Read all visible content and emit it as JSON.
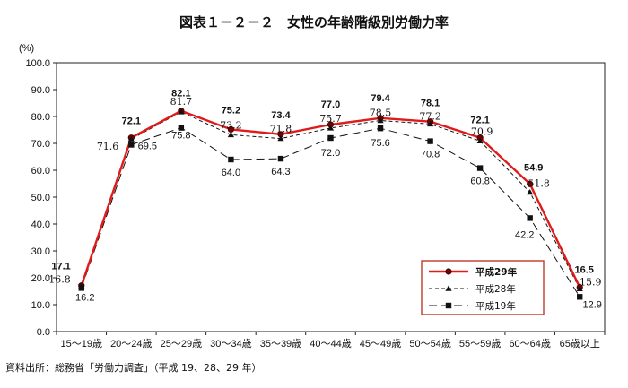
{
  "chart_data": {
    "type": "line",
    "title": "図表１－２－２　女性の年齢階級別労働力率",
    "ylabel": "(%)",
    "ylim": [
      0,
      100
    ],
    "yticks": [
      "0.0",
      "10.0",
      "20.0",
      "30.0",
      "40.0",
      "50.0",
      "60.0",
      "70.0",
      "80.0",
      "90.0",
      "100.0"
    ],
    "categories": [
      "15～19歳",
      "20～24歳",
      "25～29歳",
      "30～34歳",
      "35～39歳",
      "40～44歳",
      "45～49歳",
      "50～54歳",
      "55～59歳",
      "60～64歳",
      "65歳以上"
    ],
    "series": [
      {
        "name": "平成29年",
        "values": [
          17.1,
          72.1,
          82.1,
          75.2,
          73.4,
          77.0,
          79.4,
          78.1,
          72.1,
          54.9,
          16.5
        ],
        "labels": [
          "17.1",
          "72.1",
          "82.1",
          "75.2",
          "73.4",
          "77.0",
          "79.4",
          "78.1",
          "72.1",
          "54.9",
          "16.5"
        ]
      },
      {
        "name": "平成28年",
        "values": [
          16.8,
          71.6,
          81.7,
          73.2,
          71.8,
          75.7,
          78.5,
          77.2,
          70.9,
          51.8,
          15.9
        ],
        "labels": [
          "16.8",
          "71.6",
          "81.7",
          "73.2",
          "71.8",
          "75.7",
          "78.5",
          "77.2",
          "70.9",
          "51.8",
          "15.9"
        ]
      },
      {
        "name": "平成19年",
        "values": [
          16.2,
          69.5,
          75.8,
          64.0,
          64.3,
          72.0,
          75.6,
          70.8,
          60.8,
          42.2,
          12.9
        ],
        "labels": [
          "16.2",
          "69.5",
          "75.8",
          "64.0",
          "64.3",
          "72.0",
          "75.6",
          "70.8",
          "60.8",
          "42.2",
          "12.9"
        ]
      }
    ],
    "grid": false,
    "legend_position": "bottom-right",
    "colors": {
      "series1": "#e01b1b",
      "series1_marker": "#7a0000",
      "series2": "#111111",
      "series3": "#111111",
      "legend_border": "#c0392b"
    }
  },
  "source": "資料出所：総務省「労働力調査」（平成 19、28、29 年）"
}
